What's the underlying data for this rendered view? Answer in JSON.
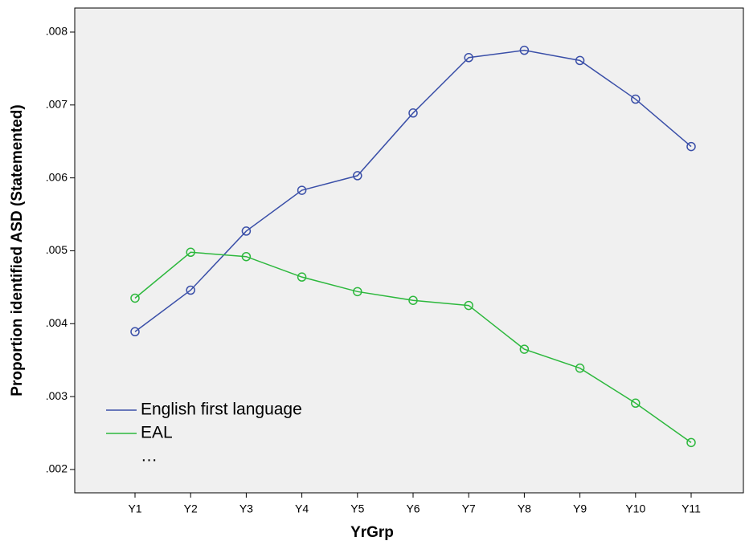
{
  "chart_data": {
    "type": "line",
    "x_label": "YrGrp",
    "y_label": "Proportion identified ASD (Statemented)",
    "categories": [
      "Y1",
      "Y2",
      "Y3",
      "Y4",
      "Y5",
      "Y6",
      "Y7",
      "Y8",
      "Y9",
      "Y10",
      "Y11"
    ],
    "series": [
      {
        "name": "English first language",
        "color": "#3a4fa8",
        "values": [
          0.00389,
          0.00446,
          0.00527,
          0.00583,
          0.00603,
          0.00689,
          0.00765,
          0.00775,
          0.00761,
          0.00708,
          0.00643
        ]
      },
      {
        "name": "EAL",
        "color": "#2db83d",
        "values": [
          0.00435,
          0.00498,
          0.00492,
          0.00464,
          0.00444,
          0.00432,
          0.00425,
          0.00365,
          0.00339,
          0.00291,
          0.00237
        ]
      }
    ],
    "legend_note": "…",
    "ylim": [
      0.00168,
      0.00833
    ],
    "yticks": [
      {
        "value": 0.002,
        "label": ".002"
      },
      {
        "value": 0.003,
        "label": ".003"
      },
      {
        "value": 0.004,
        "label": ".004"
      },
      {
        "value": 0.005,
        "label": ".005"
      },
      {
        "value": 0.006,
        "label": ".006"
      },
      {
        "value": 0.007,
        "label": ".007"
      },
      {
        "value": 0.008,
        "label": ".008"
      }
    ],
    "legend_position": "lower left",
    "marker": "circle"
  }
}
